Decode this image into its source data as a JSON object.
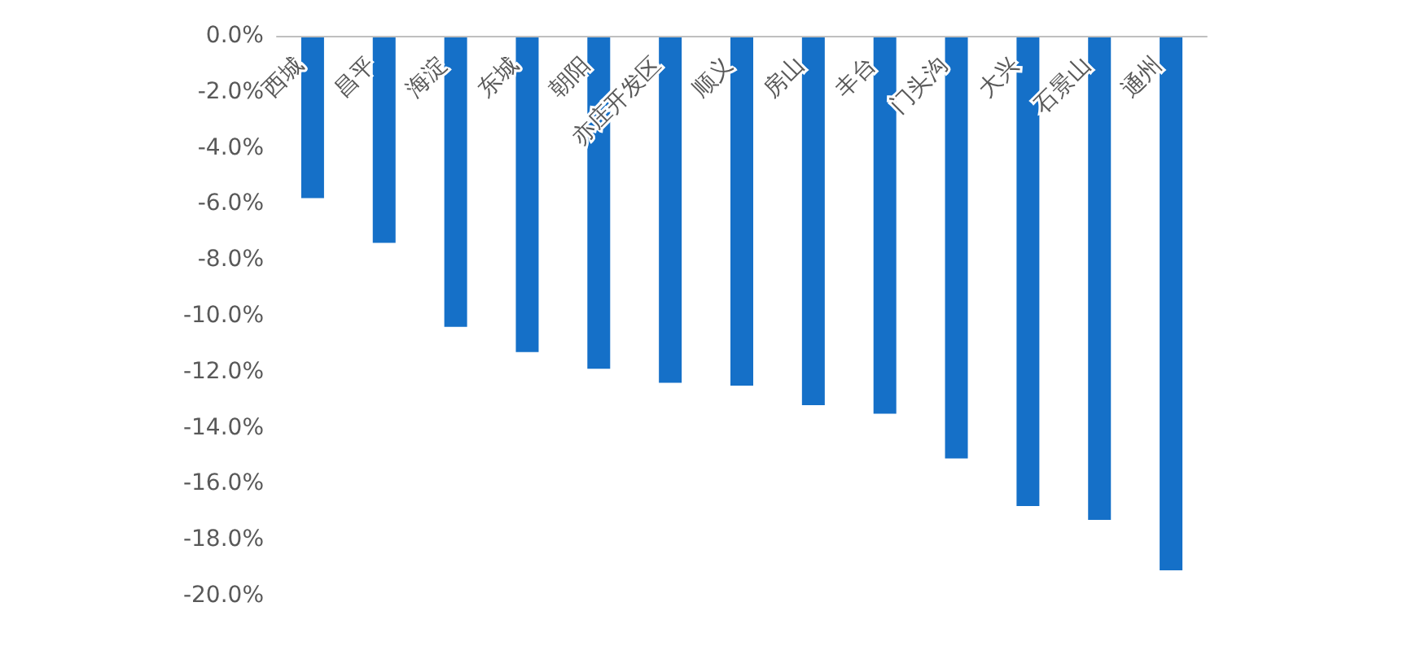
{
  "chart_data": {
    "type": "bar",
    "categories": [
      "西城",
      "昌平",
      "海淀",
      "东城",
      "朝阳",
      "亦庄开发区",
      "顺义",
      "房山",
      "丰台",
      "门头沟",
      "大兴",
      "石景山",
      "通州"
    ],
    "series": [
      {
        "color": "#1570c8",
        "values": [
          -5.8,
          -7.4,
          -10.4,
          -11.3,
          -11.9,
          -12.4,
          -12.5,
          -13.2,
          -13.5,
          -15.1,
          -16.8,
          -17.3,
          -19.1
        ]
      }
    ],
    "ylim": [
      -20,
      0
    ],
    "yticks": [
      {
        "value": 0,
        "label": "0.0%"
      },
      {
        "value": -2,
        "label": "-2.0%"
      },
      {
        "value": -4,
        "label": "-4.0%"
      },
      {
        "value": -6,
        "label": "-6.0%"
      },
      {
        "value": -8,
        "label": "-8.0%"
      },
      {
        "value": -10,
        "label": "-10.0%"
      },
      {
        "value": -12,
        "label": "-12.0%"
      },
      {
        "value": -14,
        "label": "-14.0%"
      },
      {
        "value": -16,
        "label": "-16.0%"
      },
      {
        "value": -18,
        "label": "-18.0%"
      },
      {
        "value": -20,
        "label": "-20.0%"
      }
    ],
    "grid": false
  }
}
